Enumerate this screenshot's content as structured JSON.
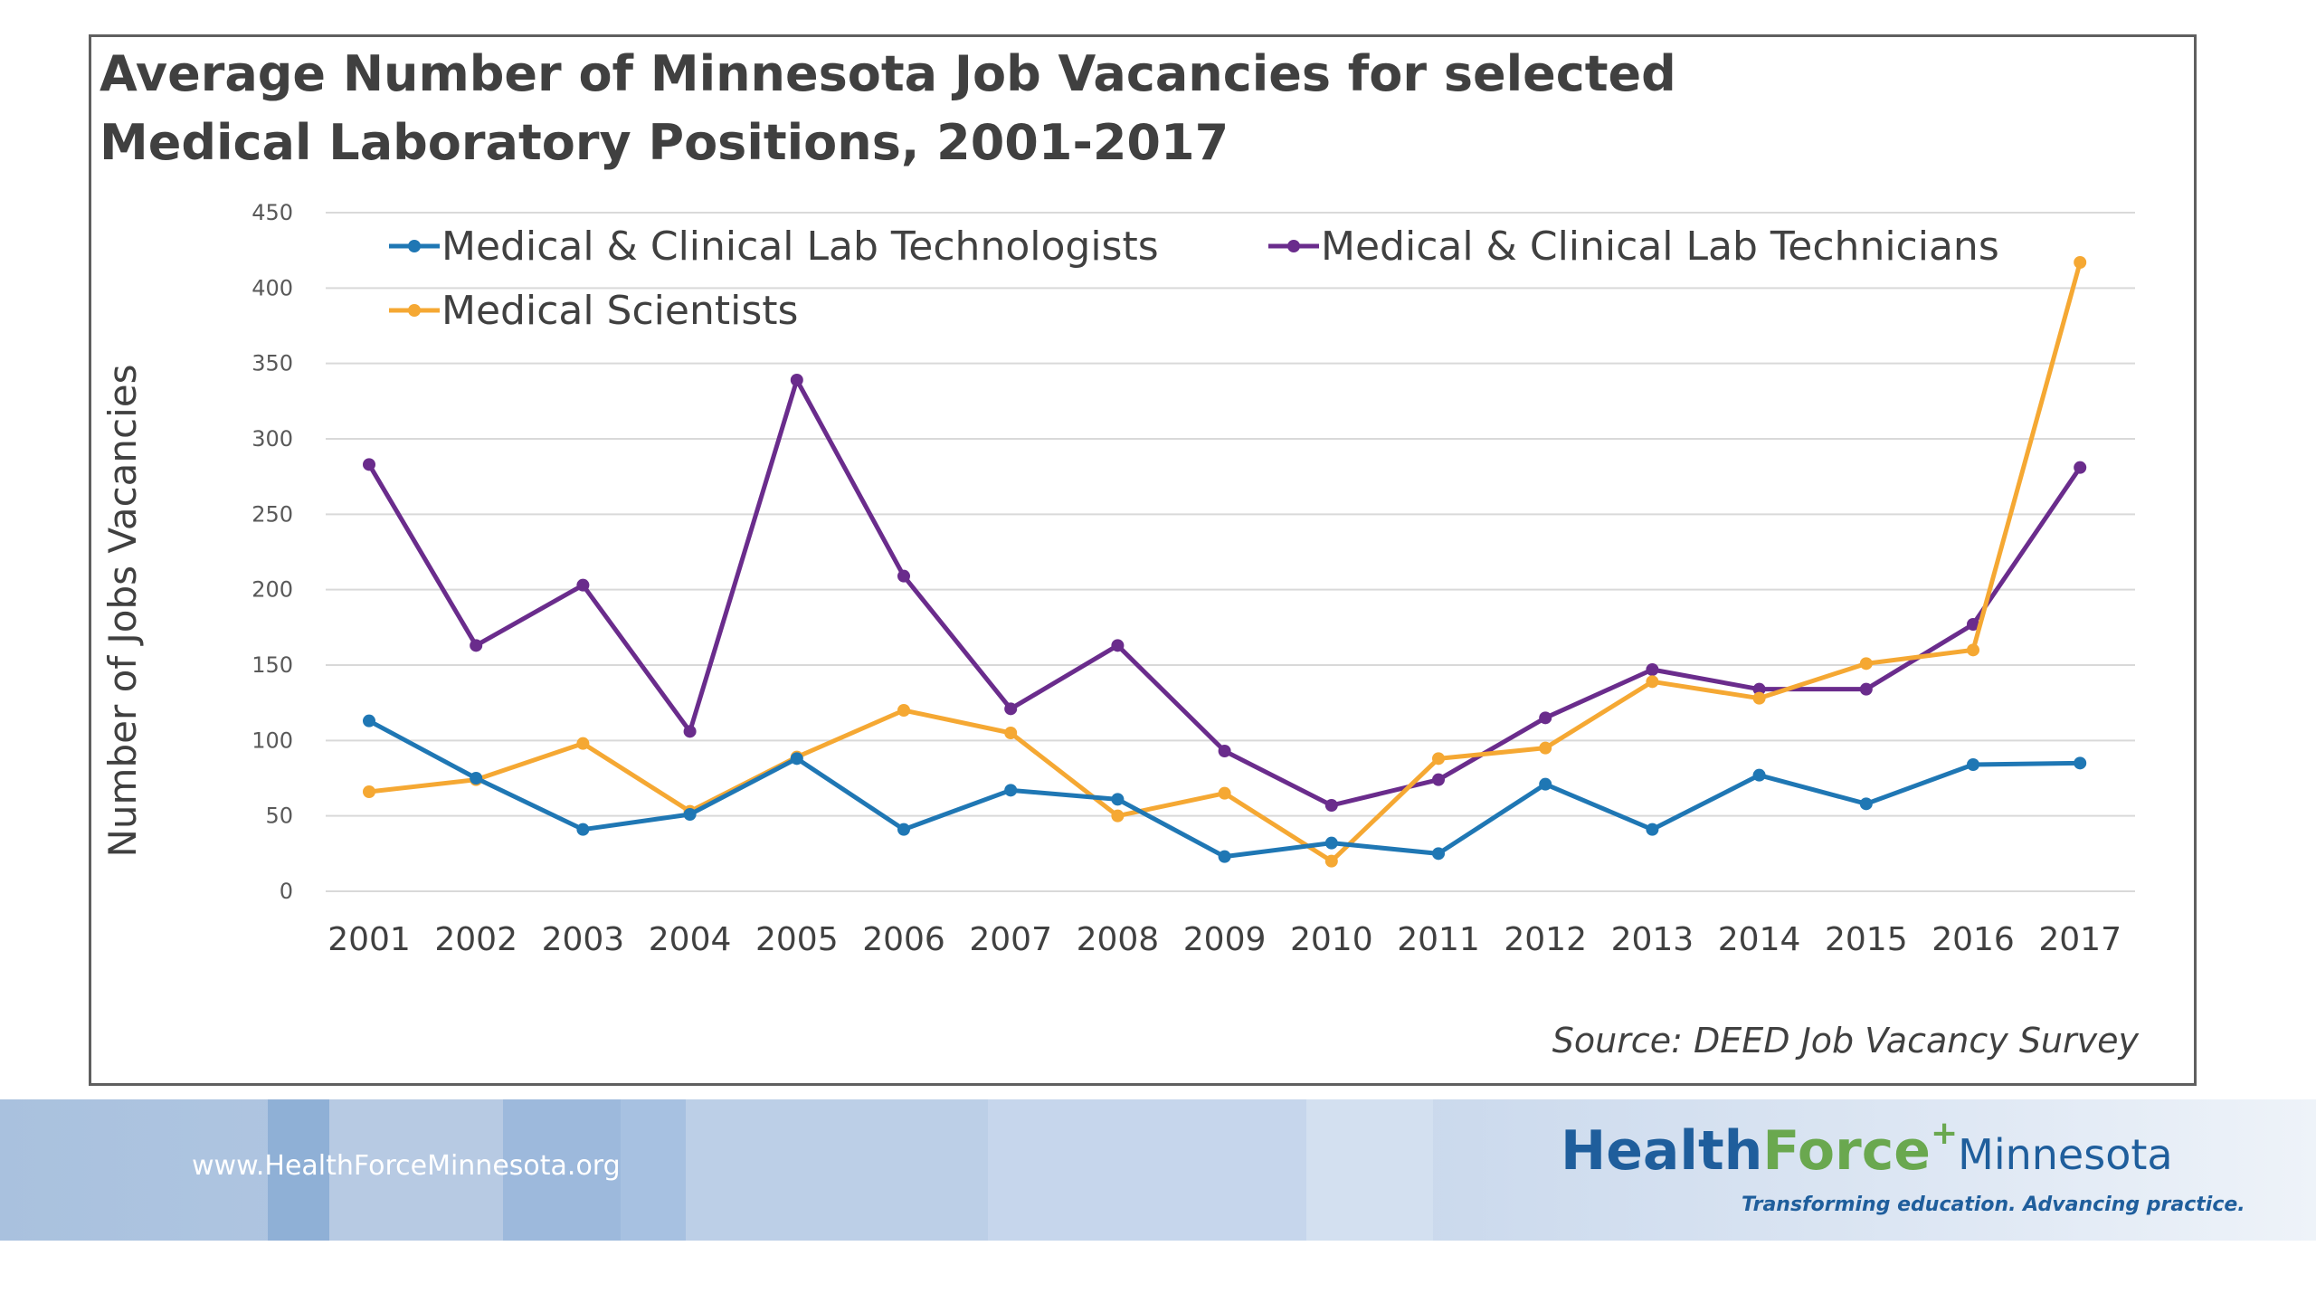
{
  "title": {
    "line1": "Average Number of Minnesota Job Vacancies for selected",
    "line2": "Medical Laboratory Positions, 2001-2017"
  },
  "source": "Source: DEED Job Vacancy Survey",
  "footer": {
    "url": "www.HealthForceMinnesota.org",
    "logo_health": "Health",
    "logo_force": "Force",
    "logo_plus": "+",
    "logo_minnesota": "Minnesota",
    "logo_tagline": "Transforming education. Advancing practice."
  },
  "colors": {
    "technologists": "#1f77b4",
    "technicians": "#6a2c8c",
    "scientists": "#f5a833",
    "gridline": "#d9d9d9"
  },
  "chart_data": {
    "type": "line",
    "title": "Average Number of Minnesota Job Vacancies for selected Medical Laboratory Positions, 2001-2017",
    "xlabel": "",
    "ylabel": "Number of Jobs Vacancies",
    "ylim": [
      0,
      450
    ],
    "yticks": [
      0,
      50,
      100,
      150,
      200,
      250,
      300,
      350,
      400,
      450
    ],
    "grid": true,
    "legend_position": "top",
    "x": [
      "2001",
      "2002",
      "2003",
      "2004",
      "2005",
      "2006",
      "2007",
      "2008",
      "2009",
      "2010",
      "2011",
      "2012",
      "2013",
      "2014",
      "2015",
      "2016",
      "2017"
    ],
    "series": [
      {
        "name": "Medical & Clinical Lab Technologists",
        "color": "#1f77b4",
        "values": [
          113,
          75,
          41,
          51,
          88,
          41,
          67,
          61,
          23,
          32,
          25,
          71,
          41,
          77,
          58,
          84,
          85
        ]
      },
      {
        "name": "Medical & Clinical Lab Technicians",
        "color": "#6a2c8c",
        "values": [
          283,
          163,
          203,
          106,
          339,
          209,
          121,
          163,
          93,
          57,
          74,
          115,
          147,
          134,
          134,
          177,
          281
        ]
      },
      {
        "name": "Medical Scientists",
        "color": "#f5a833",
        "values": [
          66,
          74,
          98,
          53,
          89,
          120,
          105,
          50,
          65,
          20,
          88,
          95,
          139,
          128,
          151,
          160,
          417
        ]
      }
    ]
  }
}
